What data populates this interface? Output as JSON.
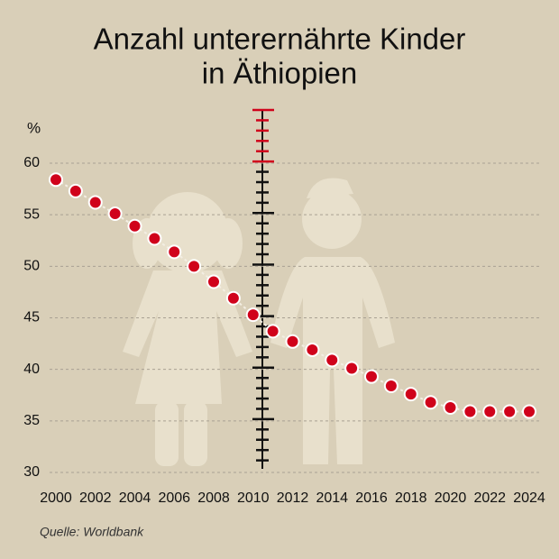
{
  "chart_data": {
    "type": "line",
    "title": "Anzahl unterernährte Kinder",
    "subtitle": "in Äthiopien",
    "y_label": "%",
    "source": "Quelle: Worldbank",
    "x": [
      2000,
      2001,
      2002,
      2003,
      2004,
      2005,
      2006,
      2007,
      2008,
      2009,
      2010,
      2011,
      2012,
      2013,
      2014,
      2015,
      2016,
      2017,
      2018,
      2019,
      2020,
      2021,
      2022,
      2023,
      2024
    ],
    "series": [
      {
        "name": "Unterernährte Kinder",
        "color": "#d0021b",
        "values": [
          58.4,
          57.3,
          56.2,
          55.1,
          53.9,
          52.7,
          51.4,
          50.0,
          48.5,
          46.9,
          45.3,
          43.7,
          42.7,
          41.9,
          40.9,
          40.1,
          39.3,
          38.4,
          37.6,
          36.8,
          36.3,
          35.9,
          35.9,
          35.9,
          35.9
        ]
      }
    ],
    "xlim": [
      2000,
      2024
    ],
    "xticks": [
      2000,
      2002,
      2004,
      2006,
      2008,
      2010,
      2012,
      2014,
      2016,
      2018,
      2020,
      2022,
      2024
    ],
    "ylim": [
      30,
      60
    ],
    "yticks": [
      30,
      35,
      40,
      45,
      50,
      55,
      60
    ],
    "grid": true
  }
}
